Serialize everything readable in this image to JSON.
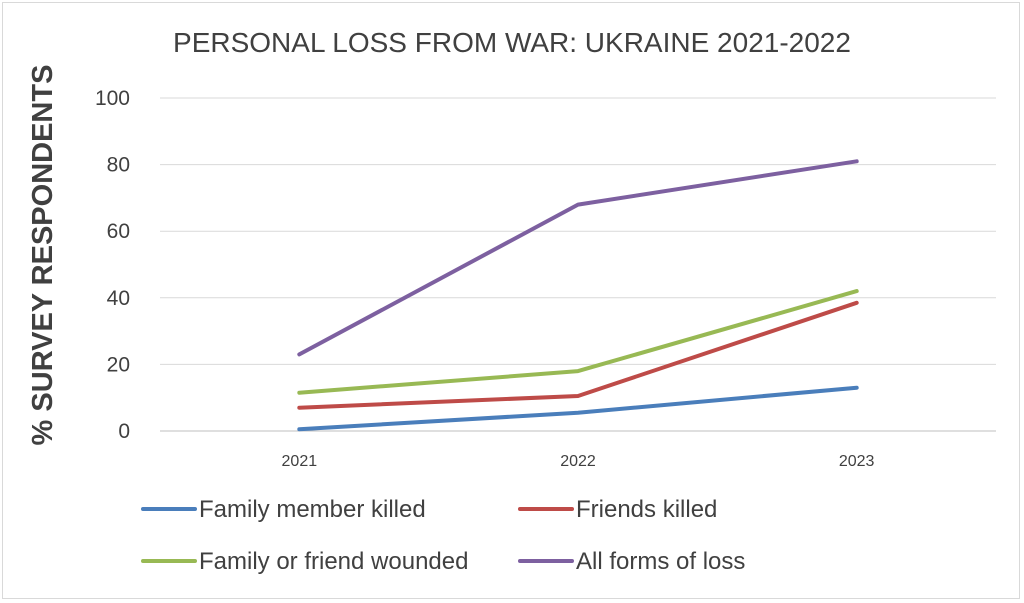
{
  "chart_data": {
    "type": "line",
    "title": "PERSONAL LOSS FROM WAR: UKRAINE 2021-2022",
    "xlabel": "",
    "ylabel": "% SURVEY RESPONDENTS",
    "x": [
      "2021",
      "2022",
      "2023"
    ],
    "ylim": [
      0,
      100
    ],
    "yticks": [
      "0",
      "20",
      "40",
      "60",
      "80",
      "100"
    ],
    "grid": true,
    "legend_position": "bottom",
    "series": [
      {
        "name": "Family member killed",
        "color": "#4a7ebb",
        "values": [
          0.5,
          5.5,
          13
        ]
      },
      {
        "name": "Friends killed",
        "color": "#be4b48",
        "values": [
          7,
          10.5,
          38.5
        ]
      },
      {
        "name": "Family or friend wounded",
        "color": "#98b954",
        "values": [
          11.5,
          18,
          42
        ]
      },
      {
        "name": "All forms of loss",
        "color": "#7d60a0",
        "values": [
          23,
          68,
          81
        ]
      }
    ]
  }
}
